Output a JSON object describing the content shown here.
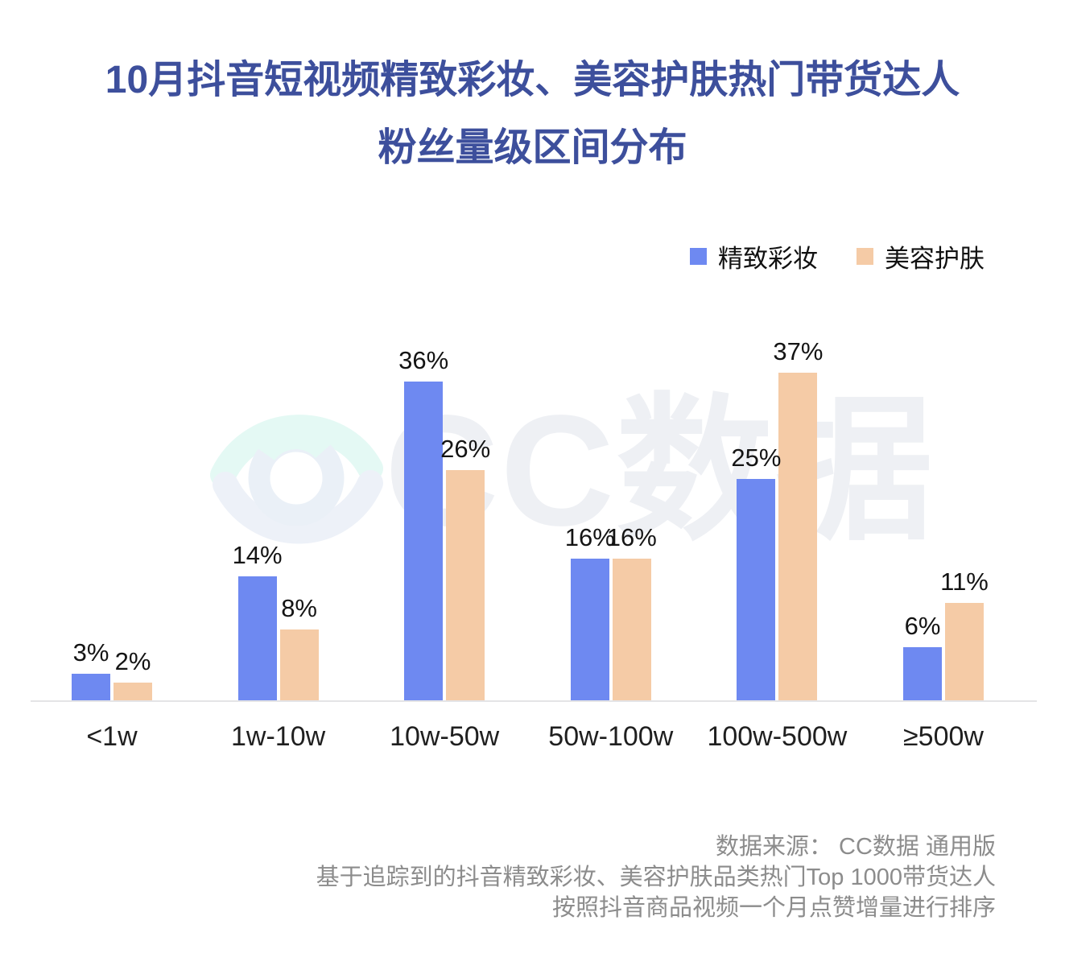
{
  "title": {
    "line1": "10月抖音短视频精致彩妆、美容护肤热门带货达人",
    "line2": "粉丝量级区间分布"
  },
  "watermark": {
    "logo": "cc-data-eye-logo",
    "text": "CC数据"
  },
  "chart_data": {
    "type": "bar",
    "title": "10月抖音短视频精致彩妆、美容护肤热门带货达人粉丝量级区间分布",
    "categories": [
      "<1w",
      "1w-10w",
      "10w-50w",
      "50w-100w",
      "100w-500w",
      "≥500w"
    ],
    "series": [
      {
        "name": "精致彩妆",
        "color": "#6e89f1",
        "values": [
          3,
          14,
          36,
          16,
          25,
          6
        ]
      },
      {
        "name": "美容护肤",
        "color": "#f5cba6",
        "values": [
          2,
          8,
          26,
          16,
          37,
          11
        ]
      }
    ],
    "value_suffix": "%",
    "data_labels": true,
    "xlabel": "",
    "ylabel": "",
    "ylim": [
      0,
      40
    ],
    "grid": false,
    "legend_position": "top-right",
    "axis_line_color": "#e4e4e6"
  },
  "footer": {
    "line1": "数据来源： CC数据 通用版",
    "line2": "基于追踪到的抖音精致彩妆、美容护肤品类热门Top 1000带货达人",
    "line3": "按照抖音商品视频一个月点赞增量进行排序"
  }
}
